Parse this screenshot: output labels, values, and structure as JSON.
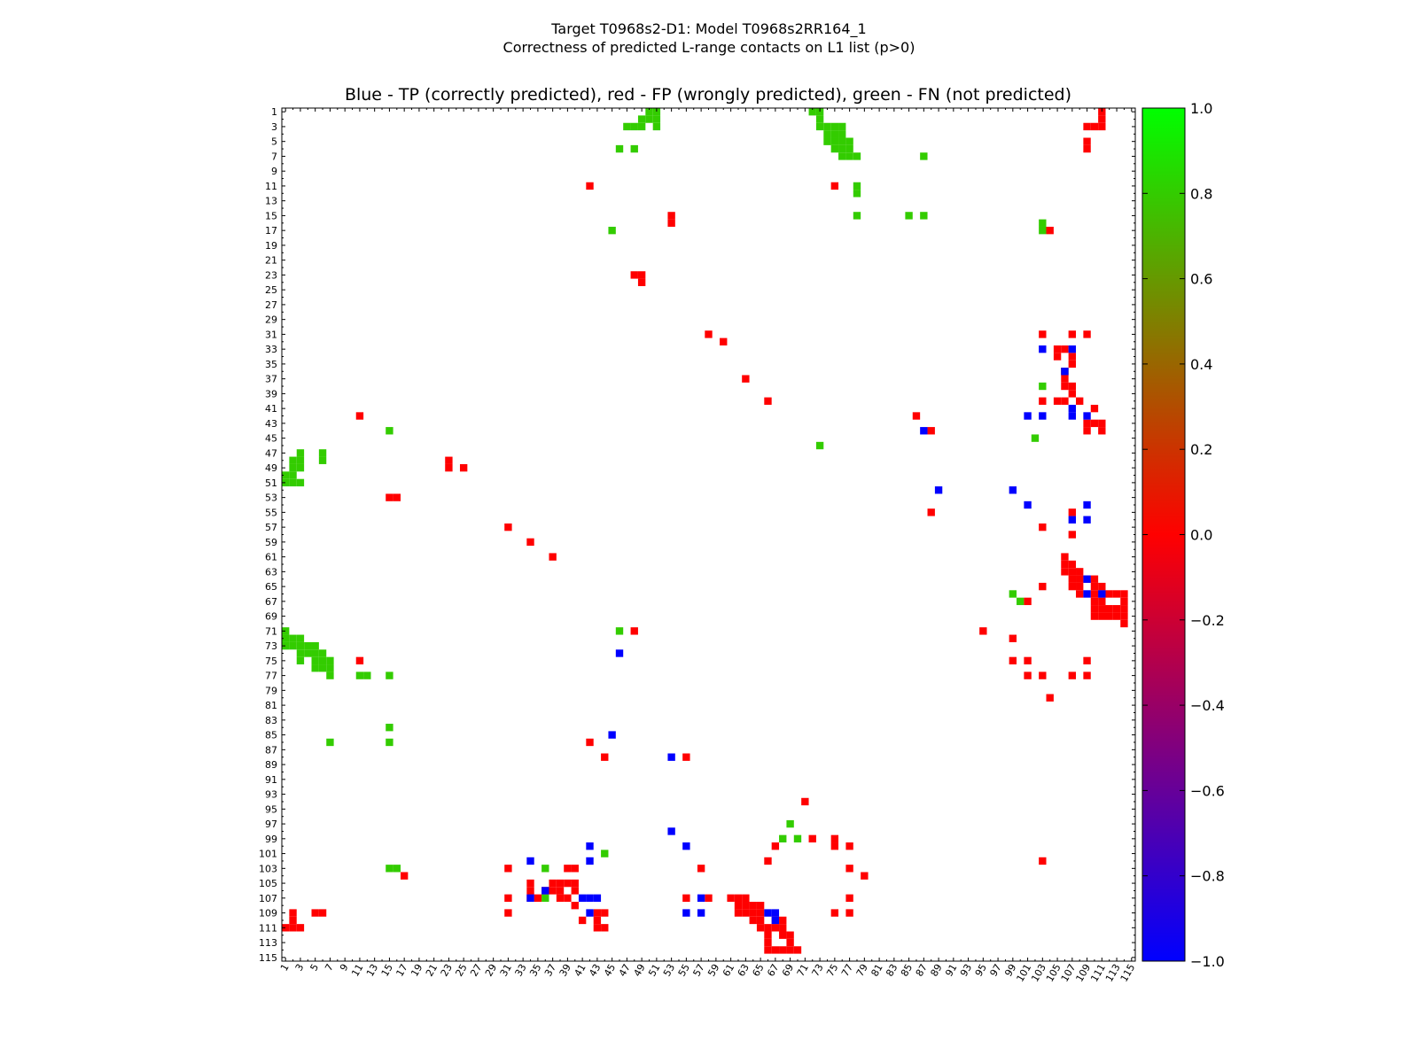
{
  "chart_data": {
    "type": "heatmap",
    "title_lines": [
      "Target T0968s2-D1: Model T0968s2RR164_1",
      "Correctness of predicted L-range contacts on L1 list (p>0)"
    ],
    "subtitle": "Blue - TP (correctly predicted), red - FP (wrongly predicted), green - FN (not predicted)",
    "axis_range": [
      1,
      115
    ],
    "ticks": [
      "1",
      "3",
      "5",
      "7",
      "9",
      "11",
      "13",
      "15",
      "17",
      "19",
      "21",
      "23",
      "25",
      "27",
      "29",
      "31",
      "33",
      "35",
      "37",
      "39",
      "41",
      "43",
      "45",
      "47",
      "49",
      "51",
      "53",
      "55",
      "57",
      "59",
      "61",
      "63",
      "65",
      "67",
      "69",
      "71",
      "73",
      "75",
      "77",
      "79",
      "81",
      "83",
      "85",
      "87",
      "89",
      "91",
      "93",
      "95",
      "97",
      "99",
      "101",
      "103",
      "105",
      "107",
      "109",
      "111",
      "113",
      "115"
    ],
    "colorbar": {
      "min": -1.0,
      "max": 1.0,
      "ticks": [
        "1.0",
        "0.8",
        "0.6",
        "0.4",
        "0.2",
        "0.0",
        "−0.2",
        "−0.4",
        "−0.6",
        "−0.8",
        "−1.0"
      ],
      "tick_values": [
        1.0,
        0.8,
        0.6,
        0.4,
        0.2,
        0.0,
        -0.2,
        -0.4,
        -0.6,
        -0.8,
        -1.0
      ],
      "colors": [
        "#00ff00",
        "#ff0000",
        "#0000ff"
      ]
    },
    "legend": {
      "TP": "blue",
      "FP": "red",
      "FN": "green"
    },
    "colors": {
      "TP": "#0000ff",
      "FP": "#ff0000",
      "FN": "#33cc00"
    },
    "cells": {
      "FN": [
        [
          1,
          50
        ],
        [
          1,
          51
        ],
        [
          1,
          72
        ],
        [
          1,
          73
        ],
        [
          2,
          49
        ],
        [
          2,
          50
        ],
        [
          2,
          51
        ],
        [
          2,
          73
        ],
        [
          3,
          47
        ],
        [
          3,
          48
        ],
        [
          3,
          49
        ],
        [
          3,
          51
        ],
        [
          3,
          73
        ],
        [
          3,
          74
        ],
        [
          3,
          75
        ],
        [
          3,
          76
        ],
        [
          4,
          74
        ],
        [
          4,
          75
        ],
        [
          4,
          76
        ],
        [
          5,
          74
        ],
        [
          5,
          75
        ],
        [
          5,
          76
        ],
        [
          5,
          77
        ],
        [
          6,
          46
        ],
        [
          6,
          48
        ],
        [
          6,
          75
        ],
        [
          6,
          76
        ],
        [
          6,
          77
        ],
        [
          7,
          76
        ],
        [
          7,
          77
        ],
        [
          7,
          78
        ],
        [
          7,
          87
        ],
        [
          11,
          78
        ],
        [
          12,
          78
        ],
        [
          15,
          78
        ],
        [
          15,
          85
        ],
        [
          15,
          87
        ],
        [
          16,
          103
        ],
        [
          17,
          45
        ],
        [
          17,
          103
        ],
        [
          36,
          106
        ],
        [
          38,
          103
        ],
        [
          44,
          15
        ],
        [
          45,
          102
        ],
        [
          46,
          73
        ],
        [
          47,
          3
        ],
        [
          47,
          6
        ],
        [
          48,
          2
        ],
        [
          48,
          3
        ],
        [
          48,
          6
        ],
        [
          49,
          2
        ],
        [
          49,
          3
        ],
        [
          50,
          1
        ],
        [
          50,
          2
        ],
        [
          51,
          1
        ],
        [
          51,
          2
        ],
        [
          51,
          3
        ],
        [
          66,
          99
        ],
        [
          67,
          100
        ],
        [
          71,
          1
        ],
        [
          71,
          46
        ],
        [
          72,
          1
        ],
        [
          72,
          2
        ],
        [
          72,
          3
        ],
        [
          73,
          1
        ],
        [
          73,
          2
        ],
        [
          73,
          3
        ],
        [
          73,
          4
        ],
        [
          73,
          5
        ],
        [
          74,
          3
        ],
        [
          74,
          4
        ],
        [
          74,
          5
        ],
        [
          74,
          6
        ],
        [
          75,
          3
        ],
        [
          75,
          5
        ],
        [
          75,
          6
        ],
        [
          75,
          7
        ],
        [
          76,
          5
        ],
        [
          76,
          6
        ],
        [
          76,
          7
        ],
        [
          77,
          7
        ],
        [
          77,
          11
        ],
        [
          77,
          12
        ],
        [
          77,
          15
        ],
        [
          84,
          15
        ],
        [
          86,
          7
        ],
        [
          86,
          15
        ],
        [
          97,
          69
        ],
        [
          99,
          68
        ],
        [
          99,
          70
        ],
        [
          101,
          44
        ],
        [
          103,
          15
        ],
        [
          103,
          16
        ],
        [
          103,
          36
        ],
        [
          107,
          36
        ]
      ],
      "TP": [
        [
          33,
          103
        ],
        [
          33,
          107
        ],
        [
          36,
          106
        ],
        [
          41,
          107
        ],
        [
          42,
          101
        ],
        [
          42,
          103
        ],
        [
          42,
          107
        ],
        [
          42,
          109
        ],
        [
          44,
          87
        ],
        [
          52,
          89
        ],
        [
          52,
          99
        ],
        [
          54,
          101
        ],
        [
          54,
          109
        ],
        [
          56,
          107
        ],
        [
          56,
          109
        ],
        [
          64,
          109
        ],
        [
          66,
          109
        ],
        [
          66,
          111
        ],
        [
          74,
          46
        ],
        [
          85,
          45
        ],
        [
          88,
          53
        ],
        [
          98,
          53
        ],
        [
          100,
          42
        ],
        [
          100,
          55
        ],
        [
          102,
          34
        ],
        [
          102,
          42
        ],
        [
          106,
          36
        ],
        [
          107,
          34
        ],
        [
          107,
          41
        ],
        [
          107,
          42
        ],
        [
          107,
          43
        ],
        [
          107,
          57
        ],
        [
          109,
          42
        ],
        [
          109,
          55
        ],
        [
          109,
          57
        ],
        [
          109,
          66
        ],
        [
          109,
          67
        ],
        [
          110,
          67
        ]
      ],
      "FP": [
        [
          1,
          111
        ],
        [
          2,
          111
        ],
        [
          3,
          109
        ],
        [
          3,
          110
        ],
        [
          3,
          111
        ],
        [
          5,
          109
        ],
        [
          6,
          109
        ],
        [
          11,
          42
        ],
        [
          11,
          75
        ],
        [
          15,
          53
        ],
        [
          16,
          53
        ],
        [
          17,
          104
        ],
        [
          23,
          48
        ],
        [
          23,
          49
        ],
        [
          24,
          49
        ],
        [
          31,
          58
        ],
        [
          31,
          103
        ],
        [
          31,
          107
        ],
        [
          31,
          109
        ],
        [
          32,
          60
        ],
        [
          33,
          105
        ],
        [
          33,
          106
        ],
        [
          34,
          105
        ],
        [
          34,
          107
        ],
        [
          35,
          107
        ],
        [
          36,
          106
        ],
        [
          37,
          63
        ],
        [
          37,
          106
        ],
        [
          38,
          106
        ],
        [
          38,
          107
        ],
        [
          39,
          107
        ],
        [
          40,
          66
        ],
        [
          40,
          103
        ],
        [
          40,
          105
        ],
        [
          40,
          106
        ],
        [
          40,
          108
        ],
        [
          41,
          110
        ],
        [
          42,
          11
        ],
        [
          42,
          86
        ],
        [
          43,
          109
        ],
        [
          43,
          110
        ],
        [
          43,
          111
        ],
        [
          44,
          88
        ],
        [
          44,
          109
        ],
        [
          44,
          111
        ],
        [
          48,
          23
        ],
        [
          49,
          23
        ],
        [
          49,
          25
        ],
        [
          53,
          15
        ],
        [
          53,
          16
        ],
        [
          55,
          88
        ],
        [
          55,
          107
        ],
        [
          57,
          31
        ],
        [
          57,
          103
        ],
        [
          58,
          107
        ],
        [
          59,
          34
        ],
        [
          61,
          37
        ],
        [
          61,
          106
        ],
        [
          62,
          106
        ],
        [
          62,
          107
        ],
        [
          63,
          106
        ],
        [
          63,
          107
        ],
        [
          63,
          108
        ],
        [
          64,
          107
        ],
        [
          64,
          108
        ],
        [
          64,
          109
        ],
        [
          64,
          110
        ],
        [
          65,
          103
        ],
        [
          65,
          107
        ],
        [
          65,
          108
        ],
        [
          65,
          110
        ],
        [
          65,
          111
        ],
        [
          66,
          108
        ],
        [
          66,
          110
        ],
        [
          66,
          111
        ],
        [
          66,
          112
        ],
        [
          66,
          113
        ],
        [
          66,
          114
        ],
        [
          67,
          101
        ],
        [
          67,
          110
        ],
        [
          67,
          111
        ],
        [
          67,
          114
        ],
        [
          68,
          110
        ],
        [
          68,
          111
        ],
        [
          68,
          112
        ],
        [
          68,
          113
        ],
        [
          68,
          114
        ],
        [
          69,
          110
        ],
        [
          69,
          111
        ],
        [
          69,
          112
        ],
        [
          69,
          113
        ],
        [
          69,
          114
        ],
        [
          70,
          114
        ],
        [
          71,
          95
        ],
        [
          71,
          48
        ],
        [
          72,
          99
        ],
        [
          75,
          11
        ],
        [
          75,
          99
        ],
        [
          75,
          101
        ],
        [
          75,
          109
        ],
        [
          77,
          101
        ],
        [
          77,
          103
        ],
        [
          77,
          107
        ],
        [
          77,
          109
        ],
        [
          80,
          104
        ],
        [
          86,
          42
        ],
        [
          88,
          44
        ],
        [
          88,
          55
        ],
        [
          94,
          71
        ],
        [
          99,
          72
        ],
        [
          99,
          75
        ],
        [
          100,
          67
        ],
        [
          100,
          75
        ],
        [
          100,
          77
        ],
        [
          102,
          66
        ],
        [
          102,
          103
        ],
        [
          103,
          31
        ],
        [
          103,
          39
        ],
        [
          103,
          40
        ],
        [
          103,
          57
        ],
        [
          103,
          77
        ],
        [
          104,
          17
        ],
        [
          104,
          79
        ],
        [
          105,
          34
        ],
        [
          105,
          37
        ],
        [
          105,
          38
        ],
        [
          105,
          39
        ],
        [
          105,
          40
        ],
        [
          106,
          34
        ],
        [
          106,
          36
        ],
        [
          106,
          37
        ],
        [
          106,
          38
        ],
        [
          106,
          40
        ],
        [
          107,
          31
        ],
        [
          107,
          34
        ],
        [
          107,
          35
        ],
        [
          107,
          38
        ],
        [
          107,
          39
        ],
        [
          107,
          55
        ],
        [
          107,
          58
        ],
        [
          107,
          61
        ],
        [
          107,
          62
        ],
        [
          107,
          63
        ],
        [
          107,
          77
        ],
        [
          108,
          40
        ],
        [
          108,
          62
        ],
        [
          108,
          63
        ],
        [
          108,
          64
        ],
        [
          108,
          65
        ],
        [
          109,
          2
        ],
        [
          109,
          5
        ],
        [
          109,
          6
        ],
        [
          109,
          31
        ],
        [
          109,
          43
        ],
        [
          109,
          44
        ],
        [
          109,
          62
        ],
        [
          109,
          63
        ],
        [
          109,
          64
        ],
        [
          109,
          65
        ],
        [
          109,
          75
        ],
        [
          109,
          77
        ],
        [
          110,
          2
        ],
        [
          110,
          41
        ],
        [
          110,
          43
        ],
        [
          110,
          64
        ],
        [
          110,
          65
        ],
        [
          110,
          67
        ],
        [
          110,
          68
        ],
        [
          111,
          1
        ],
        [
          111,
          2
        ],
        [
          111,
          3
        ],
        [
          111,
          43
        ],
        [
          111,
          44
        ],
        [
          111,
          65
        ],
        [
          111,
          66
        ],
        [
          111,
          67
        ],
        [
          111,
          68
        ],
        [
          112,
          66
        ],
        [
          112,
          68
        ],
        [
          112,
          69
        ],
        [
          113,
          66
        ],
        [
          113,
          69
        ],
        [
          114,
          66
        ],
        [
          114,
          67
        ],
        [
          114,
          68
        ],
        [
          114,
          69
        ],
        [
          114,
          70
        ]
      ]
    }
  }
}
